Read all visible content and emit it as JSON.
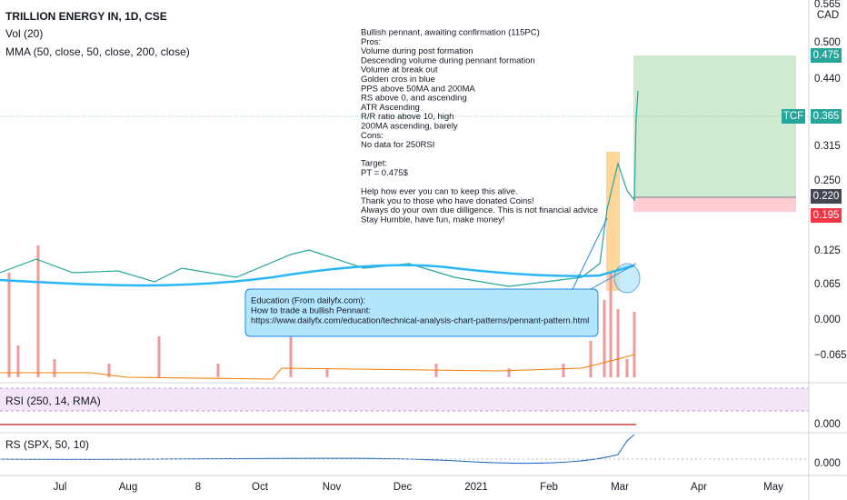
{
  "header": {
    "symbol": "TRILLION ENERGY IN, 1D, CSE",
    "volume": "Vol (20)",
    "mma": "MMA (50, close, 50, close, 200, close)",
    "currency": "CAD"
  },
  "annotation": [
    [
      "Bullish pennant, awaiting confirmation (115PC)",
      "Pros:",
      "Volume during post formation",
      "Descending volume during pennant formation",
      "Volume at break out",
      "Golden cros in blue",
      "PPS above 50MA and 200MA",
      "RS above 0, and ascending",
      "ATR Ascending",
      "R/R ratio above 10, high",
      "200MA ascending, barely",
      "Cons:",
      "No data for 250RSI"
    ],
    [
      "Target:",
      "PT = 0.475$"
    ],
    [
      "Help how ever you can to keep this alive.",
      "Thank you to those who have donated Coins!",
      "Always do your own due dilligence. This is not financial advice",
      "Stay Humble, have fun, make money!"
    ]
  ],
  "education": [
    "Education (From dailyfx.com):",
    "How to trade a bullish Pennant:",
    "https://www.dailyfx.com/education/technical-analysis-chart-patterns/pennant-pattern.html"
  ],
  "price_axis": [
    "0.565",
    "0.500",
    "0.440",
    "0.315",
    "0.250",
    "0.125",
    "0.065",
    "0.000",
    "−0.065"
  ],
  "price_tags": {
    "target": "0.475",
    "symbol": "TCF",
    "last": "0.365",
    "entry": "0.220",
    "stop": "0.195"
  },
  "rsi": {
    "label": "RSI (250, 14, RMA)",
    "axis": "0.000"
  },
  "rs": {
    "label": "RS (SPX, 50, 10)",
    "axis": "0.000"
  },
  "time_axis": [
    "Jul",
    "Aug",
    "8",
    "Oct",
    "Nov",
    "Dec",
    "2021",
    "Feb",
    "Mar",
    "Apr",
    "May"
  ]
}
